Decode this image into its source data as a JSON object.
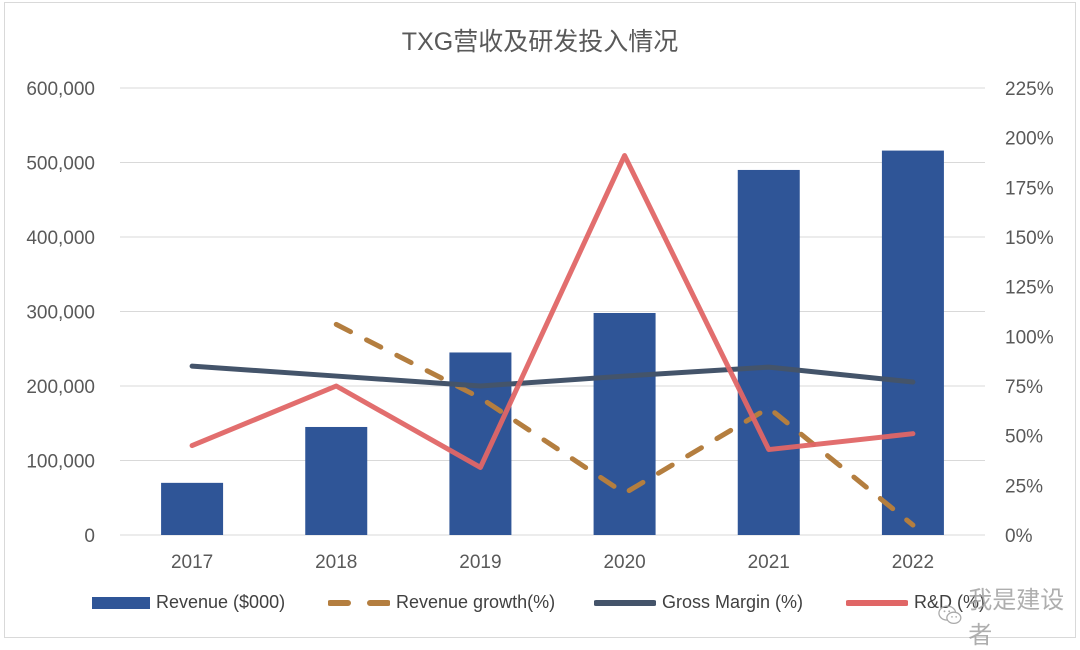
{
  "chart_data": {
    "type": "bar+line",
    "title": "TXG营收及研发投入情况",
    "categories": [
      "2017",
      "2018",
      "2019",
      "2020",
      "2021",
      "2022"
    ],
    "y_left": {
      "label": "",
      "range": [
        0,
        600000
      ],
      "ticks": [
        0,
        100000,
        200000,
        300000,
        400000,
        500000,
        600000
      ],
      "tick_labels": [
        "0",
        "100,000",
        "200,000",
        "300,000",
        "400,000",
        "500,000",
        "600,000"
      ]
    },
    "y_right": {
      "label": "",
      "range": [
        0,
        225
      ],
      "ticks": [
        0,
        25,
        50,
        75,
        100,
        125,
        150,
        175,
        200,
        225
      ],
      "tick_labels": [
        "0%",
        "25%",
        "50%",
        "75%",
        "100%",
        "125%",
        "150%",
        "175%",
        "200%",
        "225%"
      ]
    },
    "grid": true,
    "legend_position": "bottom",
    "series": [
      {
        "name": "Revenue ($000)",
        "type": "bar",
        "axis": "left",
        "color": "#2F5597",
        "values": [
          70000,
          145000,
          245000,
          298000,
          490000,
          516000
        ]
      },
      {
        "name": "Revenue growth(%)",
        "type": "line",
        "style": "dashed",
        "axis": "right",
        "color": "#B47E3F",
        "values": [
          null,
          106,
          69,
          21,
          64,
          5
        ]
      },
      {
        "name": "Gross Margin (%)",
        "type": "line",
        "style": "solid",
        "axis": "right",
        "color": "#44546A",
        "values": [
          85,
          80,
          75,
          80,
          84.5,
          77
        ]
      },
      {
        "name": "R&D (%)",
        "type": "line",
        "style": "solid",
        "axis": "right",
        "color": "#E06666",
        "values": [
          45,
          75,
          34,
          191,
          43,
          51
        ]
      }
    ]
  },
  "watermark": {
    "text": "我是建设者",
    "icon": "wechat-icon"
  }
}
